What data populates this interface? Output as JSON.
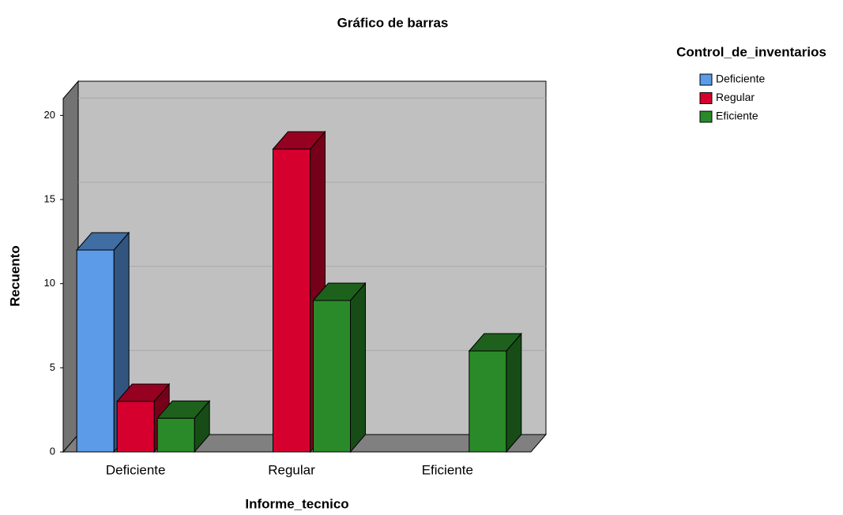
{
  "chart_data": {
    "type": "bar3d",
    "title": "Gráfico de barras",
    "x_label": "Informe_tecnico",
    "y_label": "Recuento",
    "legend_title": "Control_de_inventarios",
    "categories": [
      "Deficiente",
      "Regular",
      "Eficiente"
    ],
    "series": [
      {
        "name": "Deficiente",
        "color": "#5b9be8",
        "values": [
          12,
          null,
          null
        ]
      },
      {
        "name": "Regular",
        "color": "#d6002f",
        "values": [
          3,
          18,
          null
        ]
      },
      {
        "name": "Eficiente",
        "color": "#2a8a2a",
        "values": [
          2,
          9,
          6
        ]
      }
    ],
    "ylim": [
      0,
      21
    ],
    "yticks": [
      0,
      5,
      10,
      15,
      20
    ],
    "grid": true,
    "legend": "upper right"
  }
}
